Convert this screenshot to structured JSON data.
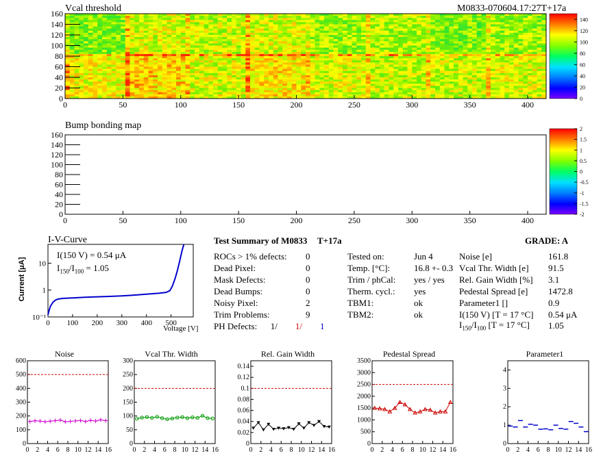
{
  "module_id": "M0833-070604.17:27T+17a",
  "vcal_map": {
    "title": "Vcal threshold",
    "x_ticks": [
      0,
      50,
      100,
      150,
      200,
      250,
      300,
      350,
      400
    ],
    "y_ticks": [
      0,
      20,
      40,
      60,
      80,
      100,
      120,
      140,
      160
    ],
    "xlim": [
      0,
      416
    ],
    "ylim": [
      0,
      160
    ],
    "palette_ticks": [
      "0",
      "20",
      "40",
      "60",
      "80",
      "100",
      "120",
      "140"
    ],
    "palette_range": [
      0,
      150
    ]
  },
  "bump_map": {
    "title": "Bump bonding map",
    "x_ticks": [
      0,
      50,
      100,
      150,
      200,
      250,
      300,
      350,
      400
    ],
    "y_ticks": [
      0,
      20,
      40,
      60,
      80,
      100,
      120,
      140,
      160
    ],
    "xlim": [
      0,
      416
    ],
    "ylim": [
      0,
      160
    ],
    "palette_ticks": [
      "2",
      "1.5",
      "1",
      "0.5",
      "0",
      "-0.5",
      "-1",
      "-1.5",
      "-2"
    ]
  },
  "iv_curve": {
    "title": "I-V-Curve",
    "ylabel": "Current [μA]",
    "xlabel": "Voltage [V]",
    "x_ticks": [
      0,
      100,
      200,
      300,
      400,
      500
    ],
    "y_ticks": [
      "10⁻¹",
      "1",
      "10"
    ],
    "xlim": [
      0,
      590
    ],
    "ylim_log": [
      0.1,
      50
    ],
    "annotation1": "I(150 V) = 0.54 μA",
    "annotation2_prefix": "I",
    "annotation2_sub1": "150",
    "annotation2_mid": "/I",
    "annotation2_sub2": "100",
    "annotation2_suffix": " =  1.05",
    "points": [
      [
        0,
        0.12
      ],
      [
        5,
        0.18
      ],
      [
        10,
        0.25
      ],
      [
        20,
        0.35
      ],
      [
        30,
        0.42
      ],
      [
        40,
        0.46
      ],
      [
        60,
        0.49
      ],
      [
        100,
        0.51
      ],
      [
        150,
        0.54
      ],
      [
        200,
        0.56
      ],
      [
        250,
        0.58
      ],
      [
        300,
        0.61
      ],
      [
        350,
        0.65
      ],
      [
        400,
        0.7
      ],
      [
        450,
        0.76
      ],
      [
        480,
        0.82
      ],
      [
        495,
        0.95
      ],
      [
        505,
        1.4
      ],
      [
        515,
        2.5
      ],
      [
        525,
        5
      ],
      [
        535,
        12
      ],
      [
        545,
        30
      ],
      [
        552,
        50
      ]
    ],
    "color": "#0000cc"
  },
  "summary": {
    "title": "Test Summary of M0833",
    "temp_label": "T+17a",
    "grade": "GRADE:  A",
    "left_rows": [
      {
        "label": "ROCs > 1% defects:",
        "value": "0"
      },
      {
        "label": "Dead Pixel:",
        "value": "0"
      },
      {
        "label": "Mask Defects:",
        "value": "0"
      },
      {
        "label": "Dead Bumps:",
        "value": "0"
      },
      {
        "label": "Noisy Pixel:",
        "value": "2"
      },
      {
        "label": "Trim Problems:",
        "value": "9"
      }
    ],
    "ph_label": "PH Defects:",
    "ph_values": [
      "1/",
      "1/",
      "1"
    ],
    "ph_colors": [
      "#000000",
      "#cc0000",
      "#0000cc"
    ],
    "mid_rows": [
      {
        "label": "Tested on:",
        "value": "Jun 4"
      },
      {
        "label": "Temp. [°C]:",
        "value": "16.8 +- 0.3"
      },
      {
        "label": "Trim / phCal:",
        "value": "yes / yes"
      },
      {
        "label": "Therm. cycl.:",
        "value": "yes"
      },
      {
        "label": "TBM1:",
        "value": "ok"
      },
      {
        "label": "TBM2:",
        "value": "ok"
      }
    ],
    "right_rows": [
      {
        "label": "Noise [e]",
        "value": "161.8"
      },
      {
        "label": "Vcal Thr. Width [e]",
        "value": "91.5"
      },
      {
        "label": "Rel. Gain Width [%]",
        "value": "3.1"
      },
      {
        "label": "Pedestal Spread [e]",
        "value": "1472.8"
      },
      {
        "label": "Parameter1 []",
        "value": "0.9"
      },
      {
        "label": "I(150 V) [T = 17 °C]",
        "value": "0.54 μA"
      }
    ],
    "ratio_label_prefix": "I",
    "ratio_sub1": "150",
    "ratio_mid": "/I",
    "ratio_sub2": "100",
    "ratio_suffix": "  [T = 17 °C]",
    "ratio_value": "1.05"
  },
  "chart_data": [
    {
      "type": "scatter",
      "title": "Noise",
      "x": [
        0,
        1,
        2,
        3,
        4,
        5,
        6,
        7,
        8,
        9,
        10,
        11,
        12,
        13,
        14,
        15
      ],
      "values": [
        160,
        165,
        163,
        158,
        162,
        166,
        170,
        158,
        161,
        164,
        167,
        160,
        168,
        163,
        172,
        166
      ],
      "ylim": [
        0,
        600
      ],
      "y_ticks": [
        0,
        100,
        200,
        300,
        400,
        500,
        600
      ],
      "reference": 500,
      "color": "#cc00cc",
      "marker": "plus"
    },
    {
      "type": "scatter",
      "title": "Vcal Thr. Width",
      "x": [
        0,
        1,
        2,
        3,
        4,
        5,
        6,
        7,
        8,
        9,
        10,
        11,
        12,
        13,
        14,
        15
      ],
      "values": [
        90,
        94,
        96,
        93,
        97,
        92,
        88,
        91,
        94,
        96,
        92,
        95,
        93,
        101,
        92,
        91
      ],
      "ylim": [
        0,
        300
      ],
      "y_ticks": [
        0,
        50,
        100,
        150,
        200,
        250,
        300
      ],
      "reference": 200,
      "color": "#009900",
      "marker": "circle"
    },
    {
      "type": "scatter",
      "title": "Rel. Gain Width",
      "x": [
        0,
        1,
        2,
        3,
        4,
        5,
        6,
        7,
        8,
        9,
        10,
        11,
        12,
        13,
        14,
        15
      ],
      "values": [
        0.028,
        0.038,
        0.025,
        0.035,
        0.026,
        0.028,
        0.027,
        0.029,
        0.026,
        0.036,
        0.028,
        0.038,
        0.033,
        0.04,
        0.031,
        0.03
      ],
      "ylim": [
        0,
        0.15
      ],
      "y_ticks": [
        0,
        0.02,
        0.04,
        0.06,
        0.08,
        0.1,
        0.12,
        0.14
      ],
      "reference": 0.1,
      "color": "#000000",
      "marker": "triangle-down"
    },
    {
      "type": "scatter",
      "title": "Pedestal Spread",
      "x": [
        0,
        1,
        2,
        3,
        4,
        5,
        6,
        7,
        8,
        9,
        10,
        11,
        12,
        13,
        14,
        15
      ],
      "values": [
        1500,
        1480,
        1450,
        1350,
        1500,
        1750,
        1650,
        1450,
        1300,
        1350,
        1450,
        1420,
        1300,
        1350,
        1350,
        1750
      ],
      "ylim": [
        0,
        3500
      ],
      "y_ticks": [
        0,
        500,
        1000,
        1500,
        2000,
        2500,
        3000,
        3500
      ],
      "reference": 2500,
      "color": "#cc0000",
      "marker": "triangle-up"
    },
    {
      "type": "scatter",
      "title": "Parameter1",
      "x": [
        0,
        1,
        2,
        3,
        4,
        5,
        6,
        7,
        8,
        9,
        10,
        11,
        12,
        13,
        14,
        15
      ],
      "values": [
        0.95,
        0.9,
        1.25,
        0.9,
        1.05,
        1.0,
        0.78,
        0.8,
        0.75,
        1.0,
        0.82,
        0.78,
        1.2,
        1.1,
        0.9,
        0.65
      ],
      "ylim": [
        0,
        4.5
      ],
      "y_ticks": [
        0,
        1,
        2,
        3,
        4
      ],
      "reference": null,
      "color": "#0000cc",
      "marker": "hline"
    }
  ],
  "small_x_ticks": [
    0,
    2,
    4,
    6,
    8,
    10,
    12,
    14,
    16
  ]
}
